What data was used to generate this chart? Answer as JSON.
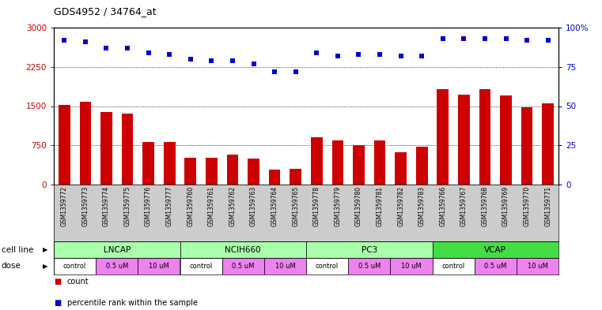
{
  "title": "GDS4952 / 34764_at",
  "samples": [
    "GSM1359772",
    "GSM1359773",
    "GSM1359774",
    "GSM1359775",
    "GSM1359776",
    "GSM1359777",
    "GSM1359760",
    "GSM1359761",
    "GSM1359762",
    "GSM1359763",
    "GSM1359764",
    "GSM1359765",
    "GSM1359778",
    "GSM1359779",
    "GSM1359780",
    "GSM1359781",
    "GSM1359782",
    "GSM1359783",
    "GSM1359766",
    "GSM1359767",
    "GSM1359768",
    "GSM1359769",
    "GSM1359770",
    "GSM1359771"
  ],
  "counts": [
    1530,
    1580,
    1380,
    1350,
    820,
    810,
    520,
    520,
    570,
    490,
    290,
    295,
    900,
    840,
    750,
    850,
    620,
    730,
    1820,
    1720,
    1820,
    1700,
    1480,
    1560
  ],
  "percentile_ranks": [
    92,
    91,
    87,
    87,
    84,
    83,
    80,
    79,
    79,
    77,
    72,
    72,
    84,
    82,
    83,
    83,
    82,
    82,
    93,
    93,
    93,
    93,
    92,
    92
  ],
  "cell_lines": [
    {
      "name": "LNCAP",
      "start": 0,
      "end": 6,
      "color": "#aaffaa"
    },
    {
      "name": "NCIH660",
      "start": 6,
      "end": 12,
      "color": "#aaffaa"
    },
    {
      "name": "PC3",
      "start": 12,
      "end": 18,
      "color": "#aaffaa"
    },
    {
      "name": "VCAP",
      "start": 18,
      "end": 24,
      "color": "#44dd44"
    }
  ],
  "dose_groups": [
    {
      "label": "control",
      "start": 0,
      "end": 2,
      "color": "#ffffff"
    },
    {
      "label": "0.5 uM",
      "start": 2,
      "end": 4,
      "color": "#ee82ee"
    },
    {
      "label": "10 uM",
      "start": 4,
      "end": 6,
      "color": "#ee82ee"
    },
    {
      "label": "control",
      "start": 6,
      "end": 8,
      "color": "#ffffff"
    },
    {
      "label": "0.5 uM",
      "start": 8,
      "end": 10,
      "color": "#ee82ee"
    },
    {
      "label": "10 uM",
      "start": 10,
      "end": 12,
      "color": "#ee82ee"
    },
    {
      "label": "control",
      "start": 12,
      "end": 14,
      "color": "#ffffff"
    },
    {
      "label": "0.5 uM",
      "start": 14,
      "end": 16,
      "color": "#ee82ee"
    },
    {
      "label": "10 uM",
      "start": 16,
      "end": 18,
      "color": "#ee82ee"
    },
    {
      "label": "control",
      "start": 18,
      "end": 20,
      "color": "#ffffff"
    },
    {
      "label": "0.5 uM",
      "start": 20,
      "end": 22,
      "color": "#ee82ee"
    },
    {
      "label": "10 uM",
      "start": 22,
      "end": 24,
      "color": "#ee82ee"
    }
  ],
  "bar_color": "#cc0000",
  "dot_color": "#0000cc",
  "left_ylim": [
    0,
    3000
  ],
  "right_ylim": [
    0,
    100
  ],
  "left_yticks": [
    0,
    750,
    1500,
    2250,
    3000
  ],
  "right_yticks": [
    0,
    25,
    50,
    75,
    100
  ],
  "left_yticklabels": [
    "0",
    "750",
    "1500",
    "2250",
    "3000"
  ],
  "right_yticklabels": [
    "0",
    "25",
    "50",
    "75",
    "100%"
  ],
  "bg_color": "#ffffff",
  "grid_color": "#000000",
  "grid_values": [
    750,
    1500,
    2250
  ],
  "cell_line_label": "cell line",
  "dose_label": "dose",
  "legend_count": "count",
  "legend_percentile": "percentile rank within the sample"
}
